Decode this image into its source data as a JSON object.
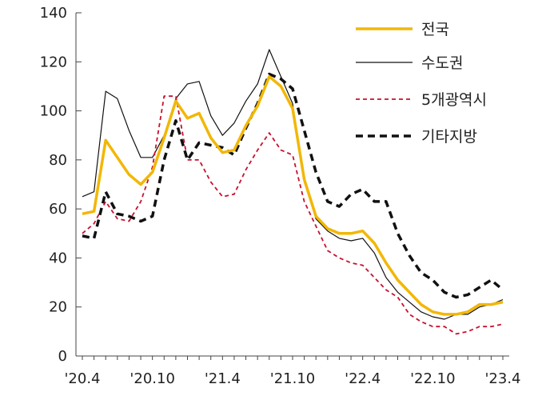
{
  "chart_data": {
    "type": "line",
    "title": "",
    "xlabel": "",
    "ylabel": "",
    "ylim": [
      0,
      140
    ],
    "yticks": [
      0,
      20,
      40,
      60,
      80,
      100,
      120,
      140
    ],
    "grid": false,
    "legend_position": "top-right",
    "x": [
      "2020-04",
      "2020-05",
      "2020-06",
      "2020-07",
      "2020-08",
      "2020-09",
      "2020-10",
      "2020-11",
      "2020-12",
      "2021-01",
      "2021-02",
      "2021-03",
      "2021-04",
      "2021-05",
      "2021-06",
      "2021-07",
      "2021-08",
      "2021-09",
      "2021-10",
      "2021-11",
      "2021-12",
      "2022-01",
      "2022-02",
      "2022-03",
      "2022-04",
      "2022-05",
      "2022-06",
      "2022-07",
      "2022-08",
      "2022-09",
      "2022-10",
      "2022-11",
      "2022-12",
      "2023-01",
      "2023-02",
      "2023-03",
      "2023-04"
    ],
    "xtick_labels": [
      "'20.4",
      "'20.10",
      "'21.4",
      "'21.10",
      "'22.4",
      "'22.10",
      "'23.4"
    ],
    "xtick_values": [
      "2020-04",
      "2020-10",
      "2021-04",
      "2021-10",
      "2022-04",
      "2022-10",
      "2023-04"
    ],
    "series": [
      {
        "name": "전국",
        "color": "#f2b705",
        "dash": "solid",
        "values": [
          58,
          59,
          88,
          81,
          74,
          70,
          75,
          89,
          104,
          97,
          99,
          89,
          83,
          84,
          94,
          102,
          114,
          110,
          101,
          72,
          57,
          52,
          50,
          50,
          51,
          46,
          38,
          31,
          26,
          21,
          18,
          17,
          17,
          18,
          21,
          21,
          22
        ]
      },
      {
        "name": "수도권",
        "color": "#111111",
        "dash": "solid-thin",
        "values": [
          65,
          67,
          108,
          105,
          92,
          81,
          81,
          90,
          105,
          111,
          112,
          98,
          90,
          95,
          104,
          111,
          125,
          114,
          103,
          71,
          56,
          51,
          48,
          47,
          48,
          42,
          32,
          26,
          22,
          18,
          16,
          15,
          17,
          17,
          20,
          21,
          23
        ]
      },
      {
        "name": "5개광역시",
        "color": "#c8102e",
        "dash": "dashed-fine",
        "values": [
          50,
          54,
          63,
          56,
          55,
          63,
          77,
          106,
          106,
          80,
          80,
          71,
          65,
          66,
          76,
          84,
          91,
          84,
          82,
          63,
          53,
          43,
          40,
          38,
          37,
          32,
          27,
          24,
          17,
          14,
          12,
          12,
          9,
          10,
          12,
          12,
          13
        ]
      },
      {
        "name": "기타지방",
        "color": "#111111",
        "dash": "dashed",
        "values": [
          49,
          48,
          67,
          58,
          57,
          55,
          57,
          80,
          96,
          80,
          87,
          86,
          85,
          82,
          93,
          103,
          115,
          113,
          109,
          92,
          75,
          63,
          61,
          66,
          68,
          63,
          63,
          50,
          41,
          34,
          31,
          26,
          24,
          25,
          28,
          31,
          27
        ]
      }
    ]
  }
}
